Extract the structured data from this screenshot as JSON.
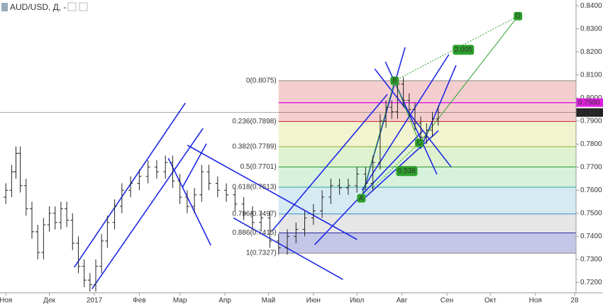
{
  "chart_data": {
    "type": "ohlc",
    "title": "AUD/USD, Д, -",
    "xlim": [
      -4,
      393
    ],
    "ylim": [
      0.7155,
      0.8425
    ],
    "xticks": [
      {
        "value": 0,
        "label": "Ноя"
      },
      {
        "value": 30,
        "label": "Дек"
      },
      {
        "value": 61,
        "label": "2017"
      },
      {
        "value": 92,
        "label": "Фев"
      },
      {
        "value": 120,
        "label": "Мар"
      },
      {
        "value": 151,
        "label": "Апр"
      },
      {
        "value": 181,
        "label": "Май"
      },
      {
        "value": 212,
        "label": "Июн"
      },
      {
        "value": 242,
        "label": "Июл"
      },
      {
        "value": 273,
        "label": "Авг"
      },
      {
        "value": 304,
        "label": "Сен"
      },
      {
        "value": 334,
        "label": "Окт"
      },
      {
        "value": 365,
        "label": "Ноя"
      },
      {
        "value": 392,
        "label": "28"
      }
    ],
    "yticks": [
      {
        "value": 0.72,
        "label": "0.7200"
      },
      {
        "value": 0.73,
        "label": "0.7300"
      },
      {
        "value": 0.74,
        "label": "0.7400"
      },
      {
        "value": 0.75,
        "label": "0.7500"
      },
      {
        "value": 0.76,
        "label": "0.7600"
      },
      {
        "value": 0.77,
        "label": "0.7700"
      },
      {
        "value": 0.78,
        "label": "0.7800"
      },
      {
        "value": 0.79,
        "label": "0.7900"
      },
      {
        "value": 0.8,
        "label": "0.8000"
      },
      {
        "value": 0.81,
        "label": "0.8100"
      },
      {
        "value": 0.82,
        "label": "0.8200"
      },
      {
        "value": 0.83,
        "label": "0.8300"
      },
      {
        "value": 0.84,
        "label": "0.8400"
      }
    ],
    "color": "#222222",
    "x": [
      0,
      4,
      7,
      10,
      14,
      18,
      22,
      26,
      30,
      34,
      38,
      42,
      46,
      50,
      54,
      58,
      62,
      66,
      70,
      75,
      80,
      86,
      92,
      98,
      104,
      110,
      115,
      120,
      125,
      130,
      135,
      140,
      146,
      152,
      158,
      164,
      170,
      176,
      182,
      188,
      194,
      200,
      206,
      212,
      218,
      224,
      230,
      236,
      242,
      248,
      253,
      258,
      262,
      266,
      270,
      274,
      278,
      282,
      286,
      290,
      294,
      298
    ],
    "open": [
      0.757,
      0.76,
      0.768,
      0.776,
      0.762,
      0.752,
      0.742,
      0.733,
      0.745,
      0.75,
      0.746,
      0.752,
      0.747,
      0.737,
      0.727,
      0.721,
      0.719,
      0.727,
      0.738,
      0.746,
      0.753,
      0.76,
      0.763,
      0.766,
      0.77,
      0.768,
      0.772,
      0.764,
      0.757,
      0.753,
      0.758,
      0.768,
      0.763,
      0.76,
      0.758,
      0.754,
      0.75,
      0.746,
      0.748,
      0.738,
      0.735,
      0.74,
      0.743,
      0.748,
      0.751,
      0.757,
      0.762,
      0.761,
      0.762,
      0.767,
      0.763,
      0.772,
      0.79,
      0.796,
      0.794,
      0.806,
      0.799,
      0.795,
      0.789,
      0.783,
      0.786,
      0.791
    ],
    "high": [
      0.763,
      0.771,
      0.779,
      0.779,
      0.765,
      0.755,
      0.745,
      0.748,
      0.753,
      0.753,
      0.755,
      0.755,
      0.75,
      0.74,
      0.73,
      0.724,
      0.73,
      0.741,
      0.749,
      0.756,
      0.763,
      0.766,
      0.769,
      0.773,
      0.773,
      0.775,
      0.775,
      0.767,
      0.76,
      0.761,
      0.771,
      0.771,
      0.766,
      0.763,
      0.761,
      0.757,
      0.753,
      0.751,
      0.751,
      0.741,
      0.743,
      0.746,
      0.751,
      0.754,
      0.76,
      0.765,
      0.765,
      0.765,
      0.77,
      0.77,
      0.775,
      0.793,
      0.799,
      0.799,
      0.809,
      0.809,
      0.802,
      0.798,
      0.792,
      0.789,
      0.794,
      0.7967
    ],
    "low": [
      0.754,
      0.757,
      0.765,
      0.759,
      0.749,
      0.739,
      0.73,
      0.73,
      0.742,
      0.743,
      0.743,
      0.744,
      0.734,
      0.724,
      0.718,
      0.716,
      0.716,
      0.724,
      0.735,
      0.743,
      0.75,
      0.757,
      0.76,
      0.763,
      0.765,
      0.765,
      0.761,
      0.754,
      0.75,
      0.75,
      0.755,
      0.76,
      0.757,
      0.755,
      0.751,
      0.747,
      0.743,
      0.743,
      0.735,
      0.732,
      0.732,
      0.737,
      0.74,
      0.745,
      0.748,
      0.754,
      0.758,
      0.758,
      0.759,
      0.76,
      0.76,
      0.769,
      0.787,
      0.791,
      0.791,
      0.796,
      0.792,
      0.786,
      0.78,
      0.78,
      0.783,
      0.788
    ],
    "close": [
      0.76,
      0.768,
      0.776,
      0.762,
      0.752,
      0.742,
      0.733,
      0.745,
      0.75,
      0.746,
      0.752,
      0.747,
      0.737,
      0.727,
      0.721,
      0.719,
      0.727,
      0.738,
      0.746,
      0.753,
      0.76,
      0.763,
      0.766,
      0.77,
      0.768,
      0.772,
      0.764,
      0.757,
      0.753,
      0.758,
      0.768,
      0.763,
      0.76,
      0.758,
      0.754,
      0.75,
      0.746,
      0.748,
      0.738,
      0.735,
      0.74,
      0.743,
      0.748,
      0.751,
      0.757,
      0.762,
      0.761,
      0.762,
      0.767,
      0.763,
      0.772,
      0.79,
      0.796,
      0.794,
      0.806,
      0.799,
      0.795,
      0.789,
      0.783,
      0.786,
      0.791,
      0.7937
    ],
    "fib": {
      "x_start": 188,
      "x_end": 393,
      "levels": [
        {
          "label": "0(0.8075)",
          "value": 0.8075,
          "color": "#888888",
          "fill": "#f2c6c6"
        },
        {
          "label": "0.236(0.7898)",
          "value": 0.7898,
          "color": "#d0202a",
          "fill": "#eef2c6"
        },
        {
          "label": "0.382(0.7789)",
          "value": 0.7789,
          "color": "#8ab02a",
          "fill": "#d9f0c8"
        },
        {
          "label": "0.5(0.7701)",
          "value": 0.7701,
          "color": "#2a9a30",
          "fill": "#cfeed6"
        },
        {
          "label": "0.618(0.7613)",
          "value": 0.7613,
          "color": "#2aa0a0",
          "fill": "#cfe6f2"
        },
        {
          "label": "0.786(0.7497)",
          "value": 0.7497,
          "color": "#3a8ad0",
          "fill": "#e2e2e2"
        },
        {
          "label": "0.886(0.7415)",
          "value": 0.7415,
          "color": "#2a2aa0",
          "fill": "#b8bce2"
        },
        {
          "label": "1(0.7327)",
          "value": 0.7327,
          "color": "#888888"
        }
      ]
    },
    "pattern": {
      "color": "#2ca02c",
      "points": [
        {
          "label": "A",
          "x": 245,
          "y": 0.7565
        },
        {
          "label": "B",
          "x": 268,
          "y": 0.8075
        },
        {
          "label": "C",
          "x": 285,
          "y": 0.7805
        },
        {
          "label": "D",
          "x": 353,
          "y": 0.8355
        }
      ],
      "ratios": [
        {
          "value": 0.538,
          "x": 270,
          "y": 0.7683
        },
        {
          "value": 2.005,
          "x": 309,
          "y": 0.8209
        }
      ]
    },
    "trendline_color": "#1e28e6",
    "trendlines": [
      [
        47.2,
        0.7266,
        123.7,
        0.7978
      ],
      [
        59.4,
        0.7172,
        135.9,
        0.7868
      ],
      [
        112,
        0.7739,
        141.3,
        0.7361
      ],
      [
        125.2,
        0.7795,
        242.1,
        0.7386
      ],
      [
        156.8,
        0.748,
        232.3,
        0.7213
      ],
      [
        121.8,
        0.7613,
        138.3,
        0.7802
      ],
      [
        183.6,
        0.7424,
        263,
        0.8016
      ],
      [
        212.9,
        0.7364,
        287.4,
        0.7858
      ],
      [
        245.5,
        0.7575,
        275.2,
        0.822
      ],
      [
        245.5,
        0.76,
        305.4,
        0.8189
      ],
      [
        285.9,
        0.778,
        310.3,
        0.8142
      ],
      [
        254.3,
        0.8126,
        306.9,
        0.7701
      ],
      [
        261.6,
        0.8157,
        297.1,
        0.7669
      ],
      [
        246,
        0.7559,
        298.1,
        0.7858
      ]
    ],
    "price_tags": [
      {
        "label": "0.7980",
        "value": 0.798,
        "color": "#e020e0"
      },
      {
        "label": "0.7937",
        "value": 0.7937,
        "color": "#222222"
      }
    ]
  }
}
